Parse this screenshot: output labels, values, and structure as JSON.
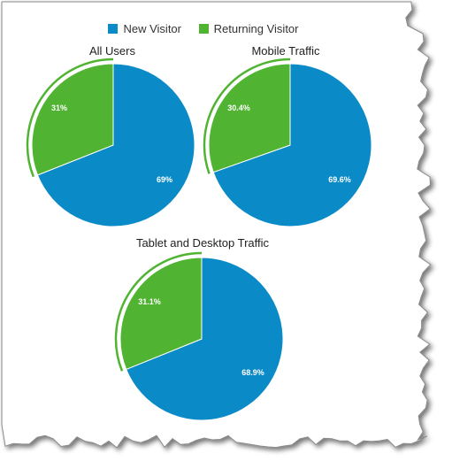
{
  "legend": {
    "items": [
      {
        "label": "New Visitor",
        "color": "#0a8ac6"
      },
      {
        "label": "Returning Visitor",
        "color": "#50b432"
      }
    ]
  },
  "chart_data": [
    {
      "type": "pie",
      "title": "All Users",
      "categories": [
        "New Visitor",
        "Returning Visitor"
      ],
      "values": [
        69,
        31
      ],
      "data_labels": [
        "69%",
        "31%"
      ],
      "colors": [
        "#0a8ac6",
        "#50b432"
      ],
      "highlighted_slice": "Returning Visitor"
    },
    {
      "type": "pie",
      "title": "Mobile Traffic",
      "categories": [
        "New Visitor",
        "Returning Visitor"
      ],
      "values": [
        69.6,
        30.4
      ],
      "data_labels": [
        "69.6%",
        "30.4%"
      ],
      "colors": [
        "#0a8ac6",
        "#50b432"
      ],
      "highlighted_slice": "Returning Visitor"
    },
    {
      "type": "pie",
      "title": "Tablet and Desktop Traffic",
      "categories": [
        "New Visitor",
        "Returning Visitor"
      ],
      "values": [
        68.9,
        31.1
      ],
      "data_labels": [
        "68.9%",
        "31.1%"
      ],
      "colors": [
        "#0a8ac6",
        "#50b432"
      ],
      "highlighted_slice": "Returning Visitor"
    }
  ]
}
